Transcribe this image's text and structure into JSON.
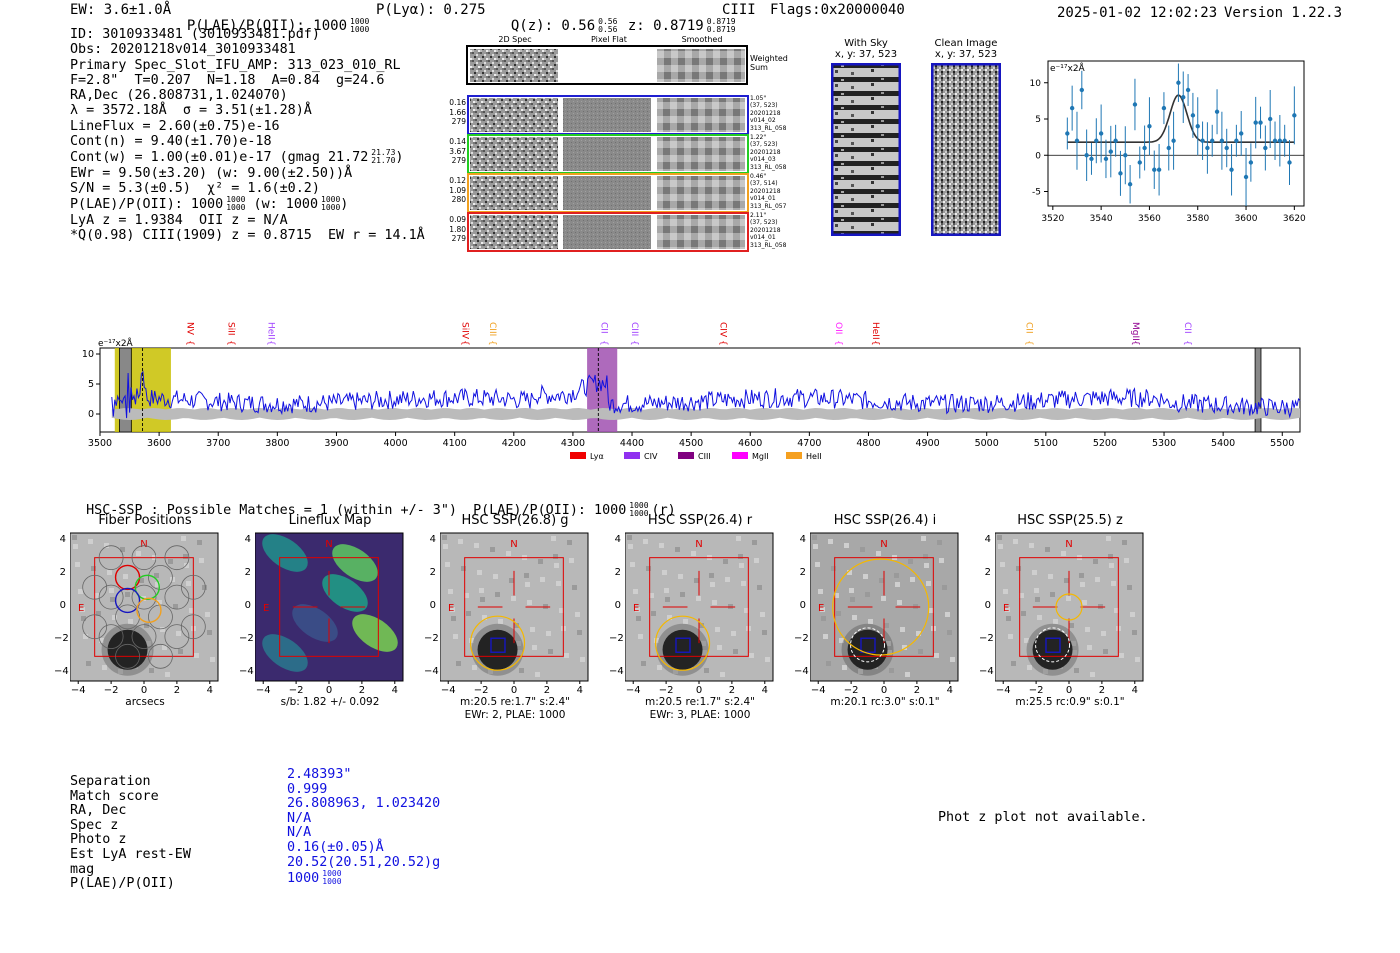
{
  "header": {
    "ew": "EW: 3.6±1.0Å",
    "plae": "P(LAE)/P(OII): 1000",
    "plae_hi": "1000",
    "plae_lo": "1000",
    "plya": "P(Lyα): 0.275",
    "qz": "Q(z): 0.56",
    "qz_hi": "0.56",
    "qz_lo": "0.56",
    "z": "z: 0.8719",
    "z_hi": "0.8719",
    "z_lo": "0.8719",
    "line": "CIII",
    "flags": "Flags:0x20000040",
    "timestamp": "2025-01-02 12:02:23",
    "version": "Version 1.22.3"
  },
  "info": {
    "l1": "ID: 3010933481 (3010933481.pdf)",
    "l2": "Obs: 20201218v014_3010933481",
    "l3": "Primary Spec_Slot_IFU_AMP: 313_023_010_RL",
    "l4": "F=2.8\"  T=0.207  N=1.18  A=0.84  g=24.6",
    "l5": "RA,Dec (26.808731,1.024070)",
    "l6": "λ = 3572.18Å  σ = 3.51(±1.28)Å",
    "l7": "LineFlux = 2.60(±0.75)e-16",
    "l8": "Cont(n) = 9.40(±1.70)e-18",
    "l9": "Cont(w) = 1.00(±0.01)e-17 (gmag 21.72",
    "l9_hi": "21.73",
    "l9_lo": "21.70",
    "l10": "EWr = 9.50(±3.20) (w: 9.00(±2.50))Å",
    "l11": "S/N = 5.3(±0.5)  χ² = 1.6(±0.2)",
    "l12": "P(LAE)/P(OII): 1000",
    "l12_hi": "1000",
    "l12_lo": "1000",
    "l12_w": "(w: 1000",
    "l12_whi": "1000",
    "l12_wlo": "1000",
    "l13": "LyA z = 1.9384  OII z = N/A",
    "l14": "*Q(0.98) CIII(1909) z = 0.8715  EW r = 14.1Å"
  },
  "cutouts": {
    "col_titles": [
      "2D Spec",
      "Pixel Flat",
      "Smoothed"
    ],
    "weighted_sum": "Weighted Sum",
    "rows": [
      {
        "stats": [
          "0.16",
          "1.66",
          "279"
        ],
        "meta": [
          "1.05\"",
          "(37, 523)",
          "20201218",
          "v014_02",
          "313_RL_058"
        ],
        "color": "#1f1fd0"
      },
      {
        "stats": [
          "0.14",
          "3.67",
          "279"
        ],
        "meta": [
          "1.22\"",
          "(37, 523)",
          "20201218",
          "v014_03",
          "313_RL_058"
        ],
        "color": "#22cc22"
      },
      {
        "stats": [
          "0.12",
          "1.09",
          "280"
        ],
        "meta": [
          "0.46\"",
          "(37, 514)",
          "20201218",
          "v014_01",
          "313_RL_057"
        ],
        "color": "#f0a020"
      },
      {
        "stats": [
          "0.09",
          "1.80",
          "279"
        ],
        "meta": [
          "2.11\"",
          "(37, 523)",
          "20201218",
          "v014_01",
          "313_RL_058"
        ],
        "color": "#e02020"
      }
    ]
  },
  "sky": {
    "with_sky": "With Sky",
    "with_sky_xy": "x, y: 37, 523",
    "clean": "Clean Image",
    "clean_xy": "x, y: 37, 523"
  },
  "zoom_chart_data": {
    "type": "scatter",
    "ylabel": "e⁻¹⁷x2Å",
    "xlim": [
      3518,
      3624
    ],
    "ylim": [
      -7,
      13
    ],
    "xticks": [
      3520,
      3540,
      3560,
      3580,
      3600,
      3620
    ],
    "yticks": [
      -5,
      0,
      5,
      10
    ],
    "x": [
      3526,
      3528,
      3530,
      3532,
      3534,
      3536,
      3538,
      3540,
      3542,
      3544,
      3546,
      3548,
      3550,
      3552,
      3554,
      3556,
      3558,
      3560,
      3562,
      3564,
      3566,
      3568,
      3570,
      3572,
      3574,
      3576,
      3578,
      3580,
      3582,
      3584,
      3586,
      3588,
      3590,
      3592,
      3594,
      3596,
      3598,
      3600,
      3602,
      3604,
      3606,
      3608,
      3610,
      3612,
      3614,
      3616,
      3618,
      3620
    ],
    "y": [
      3,
      6.5,
      2,
      9,
      0,
      -0.5,
      2,
      3,
      -0.5,
      0.5,
      2,
      -2.5,
      0,
      -4,
      7,
      -1,
      1,
      4,
      -2,
      -2,
      6.5,
      1,
      2,
      10,
      8,
      9,
      5.5,
      4,
      2,
      1,
      2,
      6,
      2,
      1,
      -2,
      2,
      3,
      -3,
      -1,
      4.5,
      4.5,
      1,
      5,
      2,
      2,
      2,
      -1,
      5.5
    ],
    "model_peak": 3572,
    "model_amp": 6.5,
    "model_sigma": 3.5,
    "model_base": 1.8
  },
  "chart_data": {
    "type": "line",
    "title": "",
    "xlabel": "",
    "ylabel": "e⁻¹⁷x2Å",
    "xlim": [
      3500,
      5530
    ],
    "ylim": [
      -3,
      11
    ],
    "xticks": [
      3500,
      3600,
      3700,
      3800,
      3900,
      4000,
      4100,
      4200,
      4300,
      4400,
      4500,
      4600,
      4700,
      4800,
      4900,
      5000,
      5100,
      5200,
      5300,
      5400,
      5500
    ],
    "yticks": [
      0,
      5,
      10
    ],
    "series_color": "#1010e0",
    "highlight_regions": [
      {
        "from": 3525,
        "to": 3620,
        "color": "#c8c000"
      },
      {
        "from": 4324,
        "to": 4375,
        "color": "#a050b0"
      }
    ],
    "masked_regions": [
      {
        "from": 3533,
        "to": 3553
      },
      {
        "from": 5454,
        "to": 5464
      }
    ],
    "line_markers": [
      {
        "name": "NV",
        "x": 3643,
        "color": "#e00000"
      },
      {
        "name": "SiII",
        "x": 3712,
        "color": "#e00000"
      },
      {
        "name": "HeII",
        "x": 3780,
        "color": "#a040ff"
      },
      {
        "name": "SiIV",
        "x": 4108,
        "color": "#e00000"
      },
      {
        "name": "CIII",
        "x": 4155,
        "color": "#f0a020"
      },
      {
        "name": "CII",
        "x": 4343,
        "color": "#a040ff"
      },
      {
        "name": "CIII",
        "x": 4395,
        "color": "#a040ff"
      },
      {
        "name": "CIV",
        "x": 4545,
        "color": "#e00000"
      },
      {
        "name": "OII",
        "x": 4740,
        "color": "#ff20ff"
      },
      {
        "name": "HeII",
        "x": 4803,
        "color": "#e00000"
      },
      {
        "name": "CII",
        "x": 5062,
        "color": "#f0a020"
      },
      {
        "name": "MgII",
        "x": 5242,
        "color": "#900090"
      },
      {
        "name": "CII",
        "x": 5330,
        "color": "#a040ff"
      }
    ],
    "legend": [
      {
        "label": "Lyα",
        "color": "#f00000"
      },
      {
        "label": "CIV",
        "color": "#9030f0"
      },
      {
        "label": "CIII",
        "color": "#800080"
      },
      {
        "label": "MgII",
        "color": "#ff00ff"
      },
      {
        "label": "HeII",
        "color": "#f5a020"
      }
    ]
  },
  "hsc": {
    "summary": "HSC-SSP : Possible Matches = 1 (within +/- 3\")  P(LAE)/P(OII): 1000",
    "summary_hi": "1000",
    "summary_lo": "1000",
    "summary_tail": "(r)",
    "ticks": [
      "4",
      "2",
      "0",
      "−2",
      "−4"
    ],
    "xticks": [
      "−4",
      "−2",
      "0",
      "2",
      "4"
    ],
    "panels": [
      {
        "title": "Fiber Positions",
        "cap1": "arcsecs",
        "cap2": ""
      },
      {
        "title": "Lineflux Map",
        "cap1": "s/b: 1.82 +/- 0.092",
        "cap2": ""
      },
      {
        "title": "HSC SSP(26.8) g",
        "cap1": "m:20.5  re:1.7\"  s:2.4\"",
        "cap2": "EWr: 2, PLAE: 1000"
      },
      {
        "title": "HSC SSP(26.4) r",
        "cap1": "m:20.5  re:1.7\"  s:2.4\"",
        "cap2": "EWr: 3, PLAE: 1000"
      },
      {
        "title": "HSC SSP(26.4) i",
        "cap1": "m:20.1 rc:3.0\"  s:0.1\"",
        "cap2": ""
      },
      {
        "title": "HSC SSP(25.5) z",
        "cap1": "m:25.5 rc:0.9\"  s:0.1\"",
        "cap2": ""
      }
    ],
    "compass_n": "N",
    "compass_e": "E"
  },
  "match": {
    "labels": [
      "Separation",
      "Match score",
      "RA, Dec",
      "Spec z",
      "Photo z",
      "Est LyA rest-EW",
      "mag",
      "P(LAE)/P(OII)"
    ],
    "values": [
      "2.48393\"",
      "0.999",
      "26.808963, 1.023420",
      "N/A",
      "N/A",
      "0.16(±0.05)Å",
      "20.52(20.51,20.52)g",
      "1000"
    ],
    "plae_hi": "1000",
    "plae_lo": "1000"
  },
  "photz": "Phot z plot not available."
}
